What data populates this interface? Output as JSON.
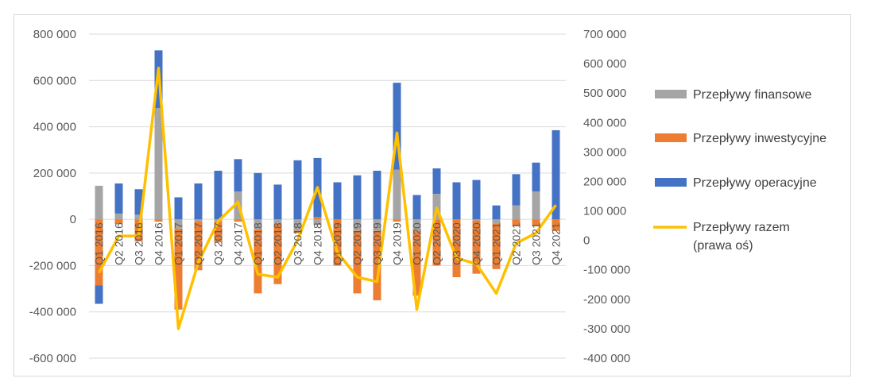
{
  "chart_data": {
    "type": "bar",
    "subtype": "stacked-bar-with-line-secondary-axis",
    "categories": [
      "Q1 2016",
      "Q2 2016",
      "Q3 2016",
      "Q4 2016",
      "Q1 2017",
      "Q2 2017",
      "Q3 2017",
      "Q4 2017",
      "Q1 2018",
      "Q2 2018",
      "Q3 2018",
      "Q4 2018",
      "Q1 2019",
      "Q2 2019",
      "Q3 2019",
      "Q4 2019",
      "Q1 2020",
      "Q2 2020",
      "Q3 2020",
      "Q4 2020",
      "Q1 2021",
      "Q2 2021",
      "Q3 2021",
      "Q4 2021"
    ],
    "series": [
      {
        "name": "Przepływy finansowe",
        "color": "#a5a5a5",
        "axis": "left",
        "values": [
          145000,
          25000,
          20000,
          480000,
          -40000,
          -10000,
          -10000,
          120000,
          -45000,
          -20000,
          -50000,
          -25000,
          0,
          -50000,
          -50000,
          215000,
          -50000,
          110000,
          0,
          -5000,
          -20000,
          60000,
          120000,
          0
        ]
      },
      {
        "name": "Przepływy inwestycyjne",
        "color": "#ed7d31",
        "axis": "left",
        "values": [
          -285000,
          -20000,
          -95000,
          -10000,
          -350000,
          -210000,
          -90000,
          -10000,
          -275000,
          -260000,
          -10000,
          10000,
          -200000,
          -270000,
          -300000,
          -10000,
          -280000,
          -200000,
          -250000,
          -230000,
          -195000,
          -30000,
          -30000,
          -50000
        ]
      },
      {
        "name": "Przepływy operacyjne",
        "color": "#4472c4",
        "axis": "left",
        "values": [
          -80000,
          130000,
          110000,
          250000,
          95000,
          155000,
          210000,
          140000,
          200000,
          150000,
          255000,
          255000,
          160000,
          190000,
          210000,
          375000,
          105000,
          110000,
          160000,
          170000,
          60000,
          135000,
          125000,
          385000
        ]
      },
      {
        "name": "Przepływy razem\n(prawa oś)",
        "color": "#ffc000",
        "axis": "right",
        "type": "line",
        "values": [
          -110000,
          15000,
          15000,
          585000,
          -300000,
          -75000,
          65000,
          130000,
          -115000,
          -125000,
          0,
          180000,
          -40000,
          -125000,
          -140000,
          365000,
          -235000,
          110000,
          -60000,
          -80000,
          -180000,
          -10000,
          25000,
          120000
        ]
      }
    ],
    "y_left": {
      "ticks": [
        "800 000",
        "600 000",
        "400 000",
        "200 000",
        "0",
        "-200 000",
        "-400 000",
        "-600 000"
      ],
      "min": -600000,
      "max": 800000
    },
    "y_right": {
      "ticks": [
        "700 000",
        "600 000",
        "500 000",
        "400 000",
        "300 000",
        "200 000",
        "100 000",
        "0",
        "-100 000",
        "-200 000",
        "-300 000",
        "-400 000"
      ],
      "min": -400000,
      "max": 700000
    },
    "grid": true,
    "legend": "right"
  }
}
